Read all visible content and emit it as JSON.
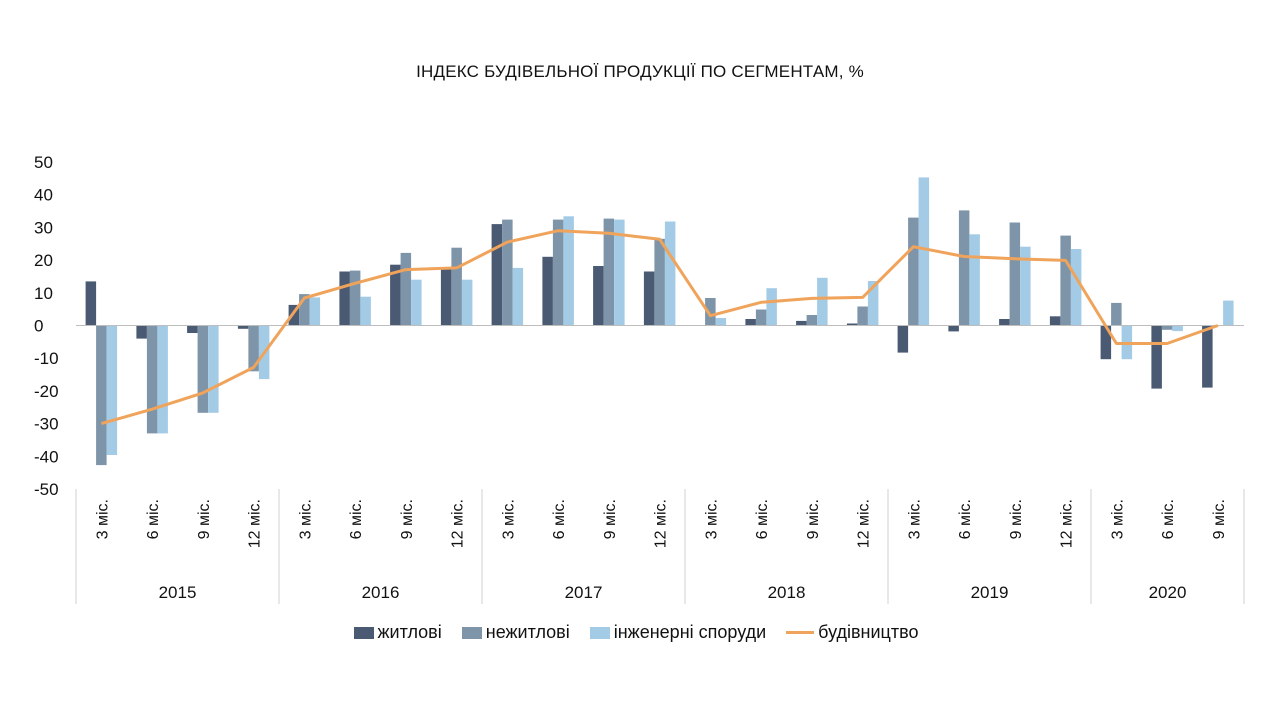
{
  "chart_data": {
    "type": "bar",
    "title": "ІНДЕКС БУДІВЕЛЬНОЇ ПРОДУКЦІЇ ПО СЕГМЕНТАМ, %",
    "ylim": [
      -50,
      50
    ],
    "yticks": [
      50,
      40,
      30,
      20,
      10,
      0,
      -10,
      -20,
      -30,
      -40,
      -50
    ],
    "grid": false,
    "legend_position": "bottom",
    "years": [
      "2015",
      "2016",
      "2017",
      "2018",
      "2019",
      "2020"
    ],
    "periods": [
      "3 міс.",
      "6 міс.",
      "9 міс.",
      "12 міс."
    ],
    "categories": [
      "3 міс.",
      "6 міс.",
      "9 міс.",
      "12 міс.",
      "3 міс.",
      "6 міс.",
      "9 міс.",
      "12 міс.",
      "3 міс.",
      "6 міс.",
      "9 міс.",
      "12 міс.",
      "3 міс.",
      "6 міс.",
      "9 міс.",
      "12 міс.",
      "3 міс.",
      "6 міс.",
      "9 міс.",
      "12 міс.",
      "3 міс.",
      "6 міс.",
      "9 міс."
    ],
    "series": [
      {
        "name": "житлові",
        "kind": "bar",
        "color": "#4a5a73",
        "values": [
          13.5,
          -4,
          -2.3,
          -1,
          6.3,
          16.5,
          18.6,
          17.3,
          31,
          21,
          18.2,
          16.5,
          null,
          2,
          1.4,
          0.6,
          -8.3,
          -1.8,
          2,
          2.8,
          -10.3,
          -19.3,
          -19
        ]
      },
      {
        "name": "нежитлові",
        "kind": "bar",
        "color": "#7e94a8",
        "values": [
          -42.7,
          -33,
          -26.7,
          -14,
          9.6,
          16.8,
          22.2,
          23.8,
          32.4,
          32.4,
          32.7,
          26.5,
          8.4,
          4.9,
          3.2,
          5.8,
          33,
          35.2,
          31.5,
          27.5,
          6.9,
          -1.3,
          null
        ]
      },
      {
        "name": "інженерні споруди",
        "kind": "bar",
        "color": "#a3cbe6",
        "values": [
          -39.6,
          -33,
          -26.7,
          -16.4,
          8.6,
          8.8,
          14,
          14,
          17.6,
          33.4,
          32.4,
          31.8,
          2.3,
          11.4,
          14.6,
          13.6,
          45.3,
          27.9,
          24.1,
          23.4,
          -10.3,
          -1.7,
          7.6
        ]
      },
      {
        "name": "будівництво",
        "kind": "line",
        "color": "#f0a35a",
        "values": [
          -30,
          -25.6,
          -20.6,
          -12.8,
          8.4,
          12.9,
          17.1,
          17.6,
          25.5,
          29,
          28.2,
          26.4,
          3,
          7.1,
          8.3,
          8.6,
          24.1,
          21.1,
          20.4,
          19.9,
          -5.5,
          -5.5,
          0
        ]
      }
    ]
  }
}
